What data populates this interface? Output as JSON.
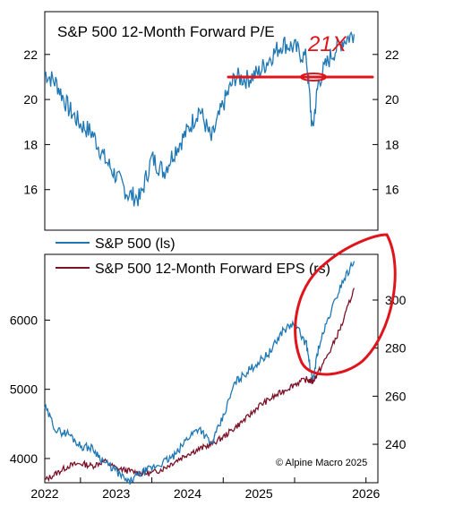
{
  "chart_data": [
    {
      "type": "line",
      "title": "S&P 500 12-Month Forward P/E",
      "xlabel": "",
      "ylabel": "",
      "ylim": [
        14.2,
        23.9
      ],
      "y_ticks": [
        "22",
        "20",
        "18",
        "16"
      ],
      "y_tick_values": [
        22,
        20,
        18,
        16
      ],
      "grid": false,
      "series": [
        {
          "color": "#1f78b4",
          "x": [
            "2021-07",
            "2021-09",
            "2021-11",
            "2022-01",
            "2022-03",
            "2022-05",
            "2022-07",
            "2022-09",
            "2022-11",
            "2023-01",
            "2023-03",
            "2023-05",
            "2023-07",
            "2023-09",
            "2023-11",
            "2024-01",
            "2024-03",
            "2024-05",
            "2024-07",
            "2024-09",
            "2024-11",
            "2025-01",
            "2025-03",
            "2025-04",
            "2025-05",
            "2025-07",
            "2025-09",
            "2025-11"
          ],
          "values": [
            21.2,
            20.7,
            19.6,
            18.9,
            18.5,
            17.4,
            16.6,
            15.8,
            15.6,
            17.4,
            16.8,
            17.8,
            18.6,
            19.6,
            18.2,
            19.8,
            21.0,
            20.9,
            21.2,
            21.9,
            22.5,
            22.3,
            21.8,
            18.6,
            20.8,
            21.9,
            22.6,
            22.9
          ]
        }
      ],
      "annotations": {
        "handwritten_label": "21X",
        "horizontal_line_at": 21.0,
        "color": "#e0141b"
      }
    },
    {
      "type": "line",
      "title": "",
      "xlabel": "",
      "x_ticks": [
        "2022",
        "2023",
        "2024",
        "2025",
        "2026"
      ],
      "x_range": [
        "2021-07",
        "2026-03"
      ],
      "legend_position": "top-left",
      "source_note": "© Alpine Macro 2025",
      "grid": false,
      "left_axis": {
        "ylim": [
          3650,
          6950
        ],
        "ticks": [
          "6000",
          "5000",
          "4000"
        ],
        "tick_values": [
          6000,
          5000,
          4000
        ]
      },
      "right_axis": {
        "ylim": [
          224,
          319
        ],
        "ticks": [
          "300",
          "280",
          "260",
          "240"
        ],
        "tick_values": [
          300,
          280,
          260,
          240
        ]
      },
      "series": [
        {
          "name": "S&P 500 (ls)",
          "axis": "left",
          "color": "#1f78b4",
          "x": [
            "2021-07",
            "2021-09",
            "2021-11",
            "2022-01",
            "2022-03",
            "2022-05",
            "2022-07",
            "2022-09",
            "2022-11",
            "2023-01",
            "2023-03",
            "2023-05",
            "2023-07",
            "2023-09",
            "2023-11",
            "2024-01",
            "2024-03",
            "2024-05",
            "2024-07",
            "2024-09",
            "2024-11",
            "2025-01",
            "2025-03",
            "2025-04",
            "2025-05",
            "2025-07",
            "2025-09",
            "2025-11"
          ],
          "values": [
            4740,
            4400,
            4360,
            4180,
            4150,
            3950,
            3820,
            3650,
            3780,
            3860,
            3950,
            4050,
            4300,
            4450,
            4200,
            4600,
            5100,
            5250,
            5400,
            5550,
            5850,
            5950,
            5650,
            5100,
            5600,
            6100,
            6550,
            6850
          ]
        },
        {
          "name": "S&P 500 12-Month Forward EPS (rs)",
          "axis": "right",
          "color": "#7d1128",
          "x": [
            "2021-07",
            "2021-09",
            "2021-11",
            "2022-01",
            "2022-03",
            "2022-05",
            "2022-07",
            "2022-09",
            "2022-11",
            "2023-01",
            "2023-03",
            "2023-05",
            "2023-07",
            "2023-09",
            "2023-11",
            "2024-01",
            "2024-03",
            "2024-05",
            "2024-07",
            "2024-09",
            "2024-11",
            "2025-01",
            "2025-03",
            "2025-04",
            "2025-05",
            "2025-07",
            "2025-09",
            "2025-11"
          ],
          "values": [
            225,
            228,
            231,
            232,
            231,
            233,
            230,
            229,
            228,
            228,
            230,
            233,
            236,
            238,
            240,
            243,
            247,
            251,
            256,
            259,
            262,
            265,
            267,
            266,
            270,
            279,
            290,
            305
          ]
        }
      ],
      "annotations": {
        "highlight": "circle",
        "color": "#e0141b"
      }
    }
  ]
}
